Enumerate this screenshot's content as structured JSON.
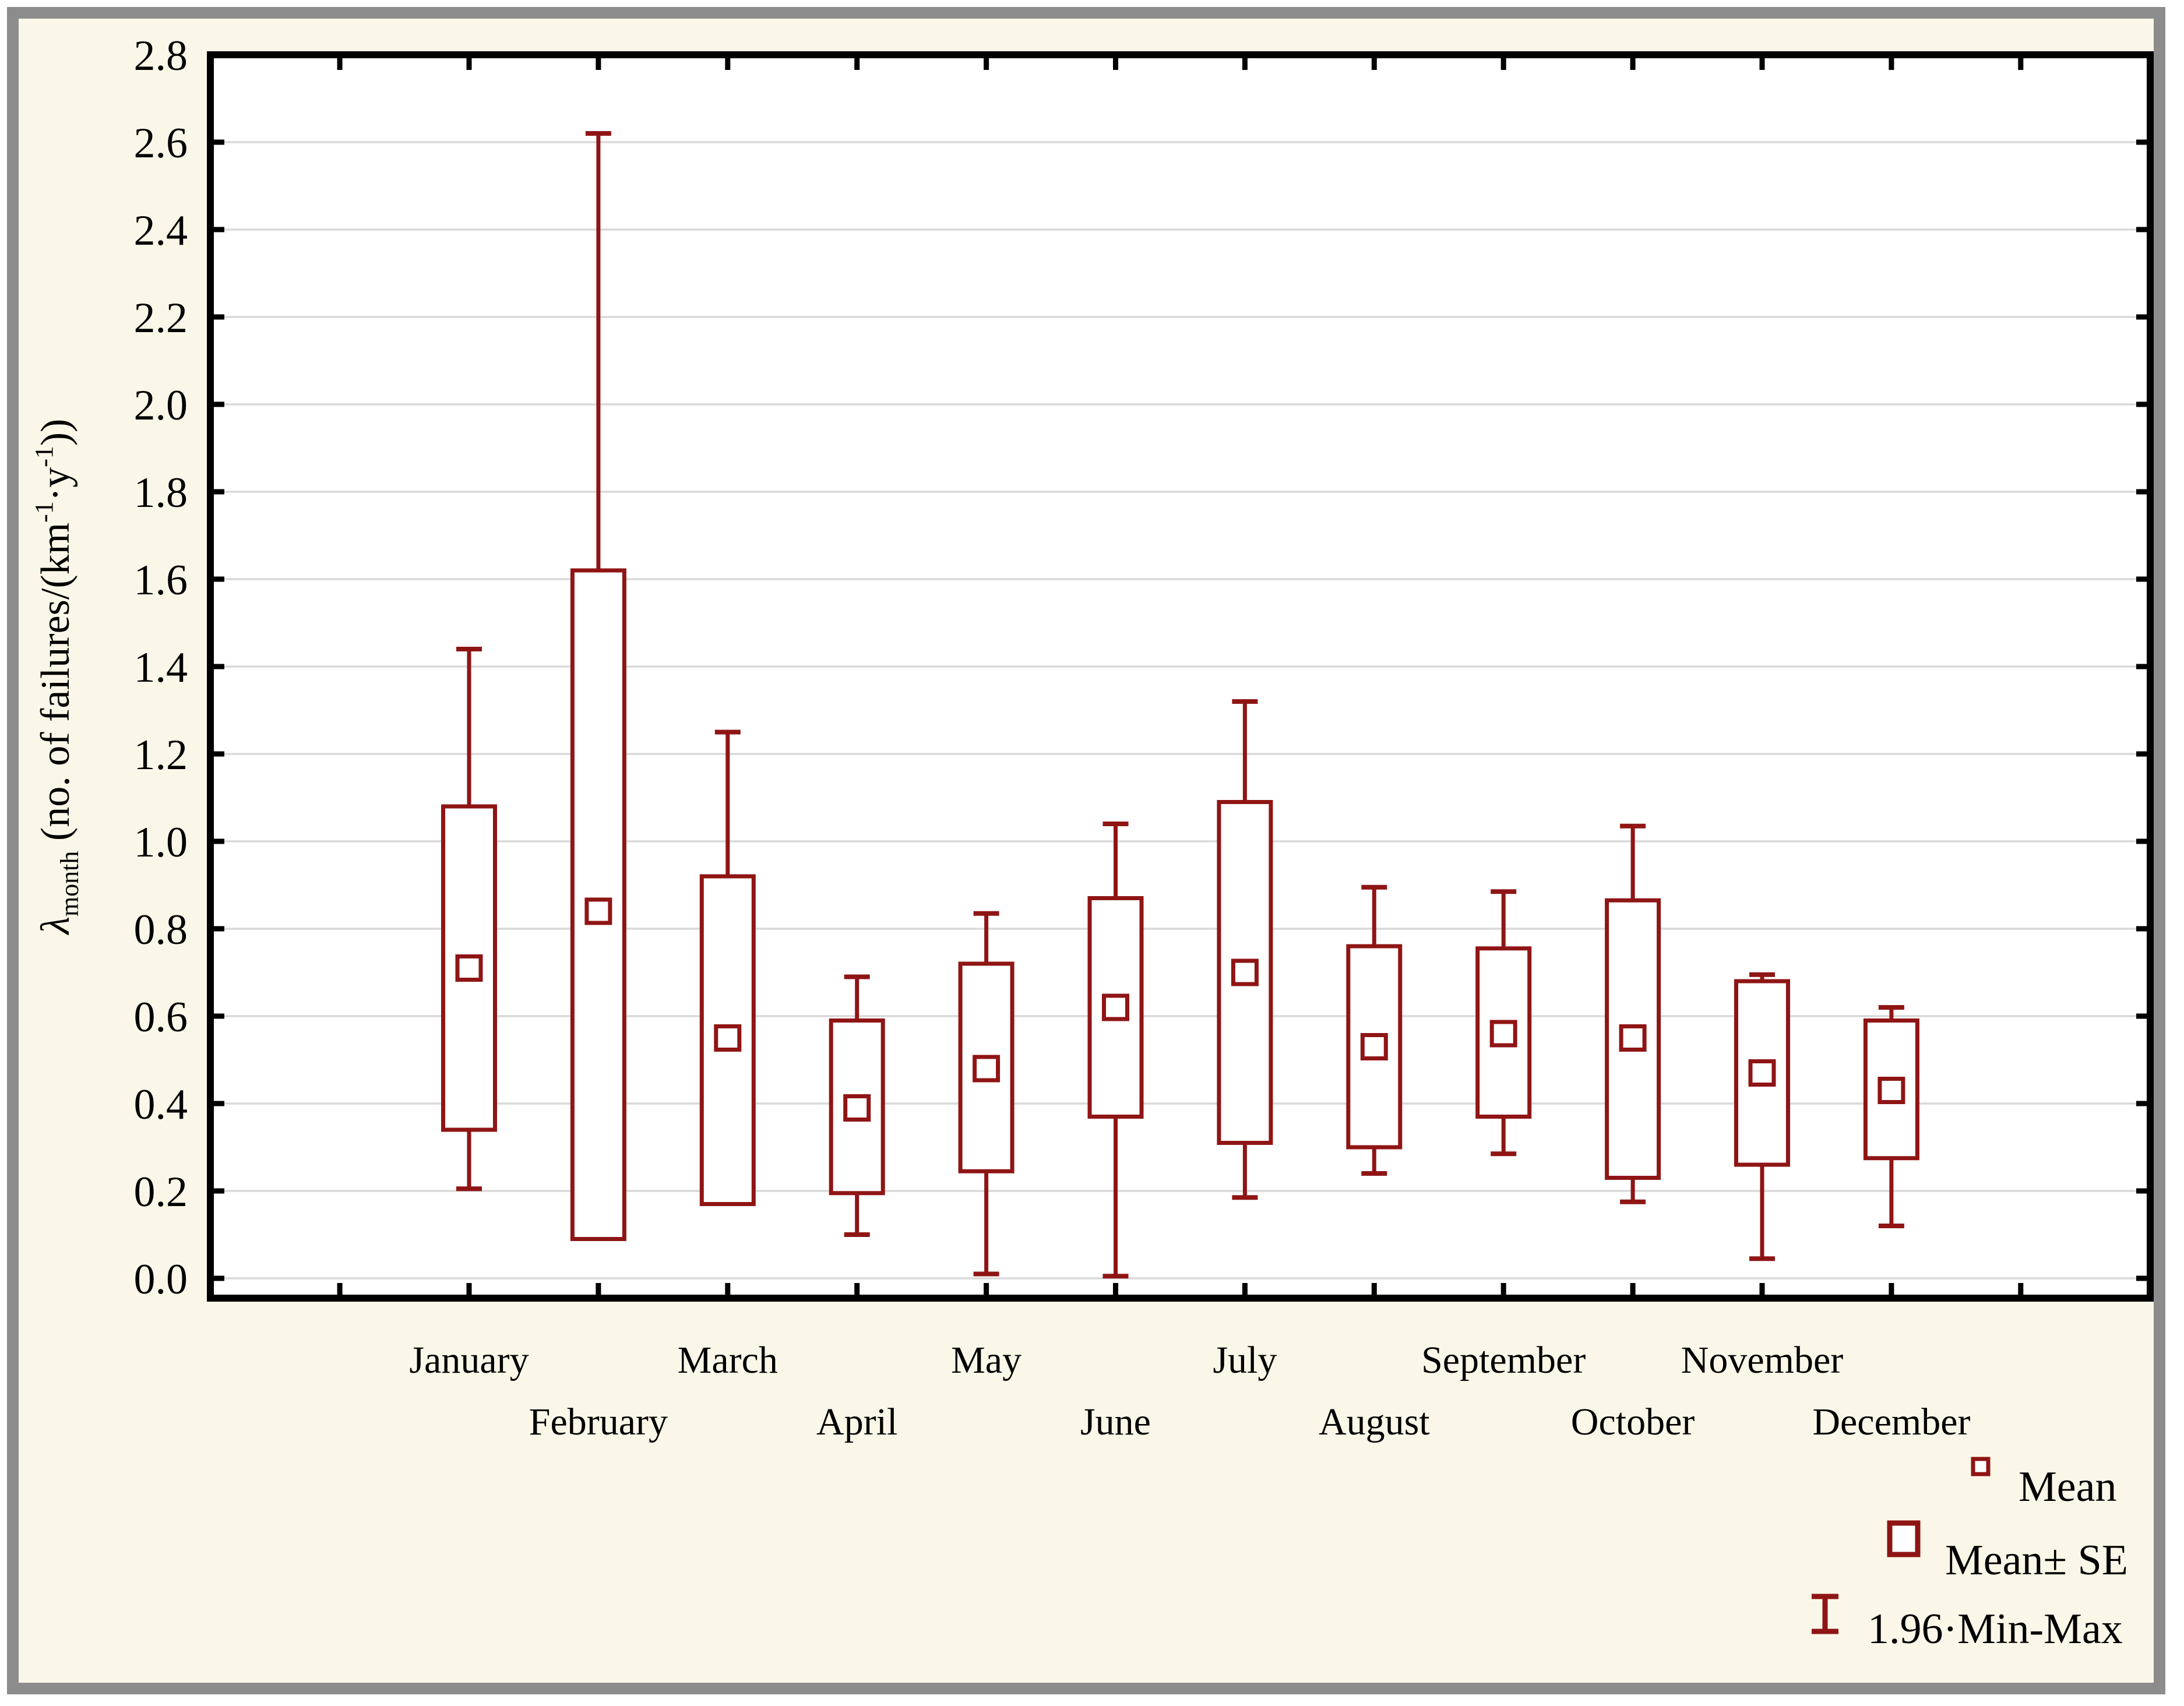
{
  "colors": {
    "figure_background": "#fbf7e8",
    "figure_border": "#8c8c8c",
    "plot_background": "#ffffff",
    "plot_frame": "#000000",
    "gridline": "#d9d9d9",
    "box_color": "#8f1515",
    "text_color": "#000000"
  },
  "chart_data": {
    "type": "boxplot",
    "title": "",
    "ylabel_parts": {
      "symbol": "λ",
      "symbol_sub": "month",
      "text_1": " (no. of failures/(km",
      "sup_1": "-1",
      "text_2": "·y",
      "sup_2": "-1",
      "text_3": "))"
    },
    "categories": [
      "January",
      "February",
      "March",
      "April",
      "May",
      "June",
      "July",
      "August",
      "September",
      "October",
      "November",
      "December"
    ],
    "y_ticks": [
      "0.0",
      "0.2",
      "0.4",
      "0.6",
      "0.8",
      "1.0",
      "1.2",
      "1.4",
      "1.6",
      "1.8",
      "2.0",
      "2.2",
      "2.4",
      "2.6",
      "2.8"
    ],
    "ylim": [
      0,
      2.8
    ],
    "grid": "horizontal",
    "series": [
      {
        "name": "Mean",
        "values": [
          0.71,
          0.84,
          0.55,
          0.39,
          0.48,
          0.62,
          0.7,
          0.53,
          0.56,
          0.55,
          0.47,
          0.43
        ]
      },
      {
        "name": "Mean-SE",
        "values": [
          0.34,
          0.09,
          0.17,
          0.195,
          0.245,
          0.37,
          0.31,
          0.3,
          0.37,
          0.23,
          0.26,
          0.275
        ]
      },
      {
        "name": "Mean+SE",
        "values": [
          1.08,
          1.62,
          0.92,
          0.59,
          0.72,
          0.87,
          1.09,
          0.76,
          0.755,
          0.865,
          0.68,
          0.59
        ]
      },
      {
        "name": "Min",
        "values": [
          0.205,
          0.09,
          0.17,
          0.1,
          0.01,
          0.005,
          0.185,
          0.24,
          0.285,
          0.175,
          0.045,
          0.12
        ]
      },
      {
        "name": "Max",
        "values": [
          1.44,
          2.62,
          1.25,
          0.69,
          0.835,
          1.04,
          1.32,
          0.895,
          0.885,
          1.035,
          0.695,
          0.62
        ]
      }
    ],
    "legend": [
      {
        "label": "Mean",
        "marker": "small-square"
      },
      {
        "label": "Mean± SE",
        "marker": "box"
      },
      {
        "label": "1.96·Min-Max",
        "marker": "whisker"
      }
    ],
    "legend_position": "bottom-right"
  }
}
